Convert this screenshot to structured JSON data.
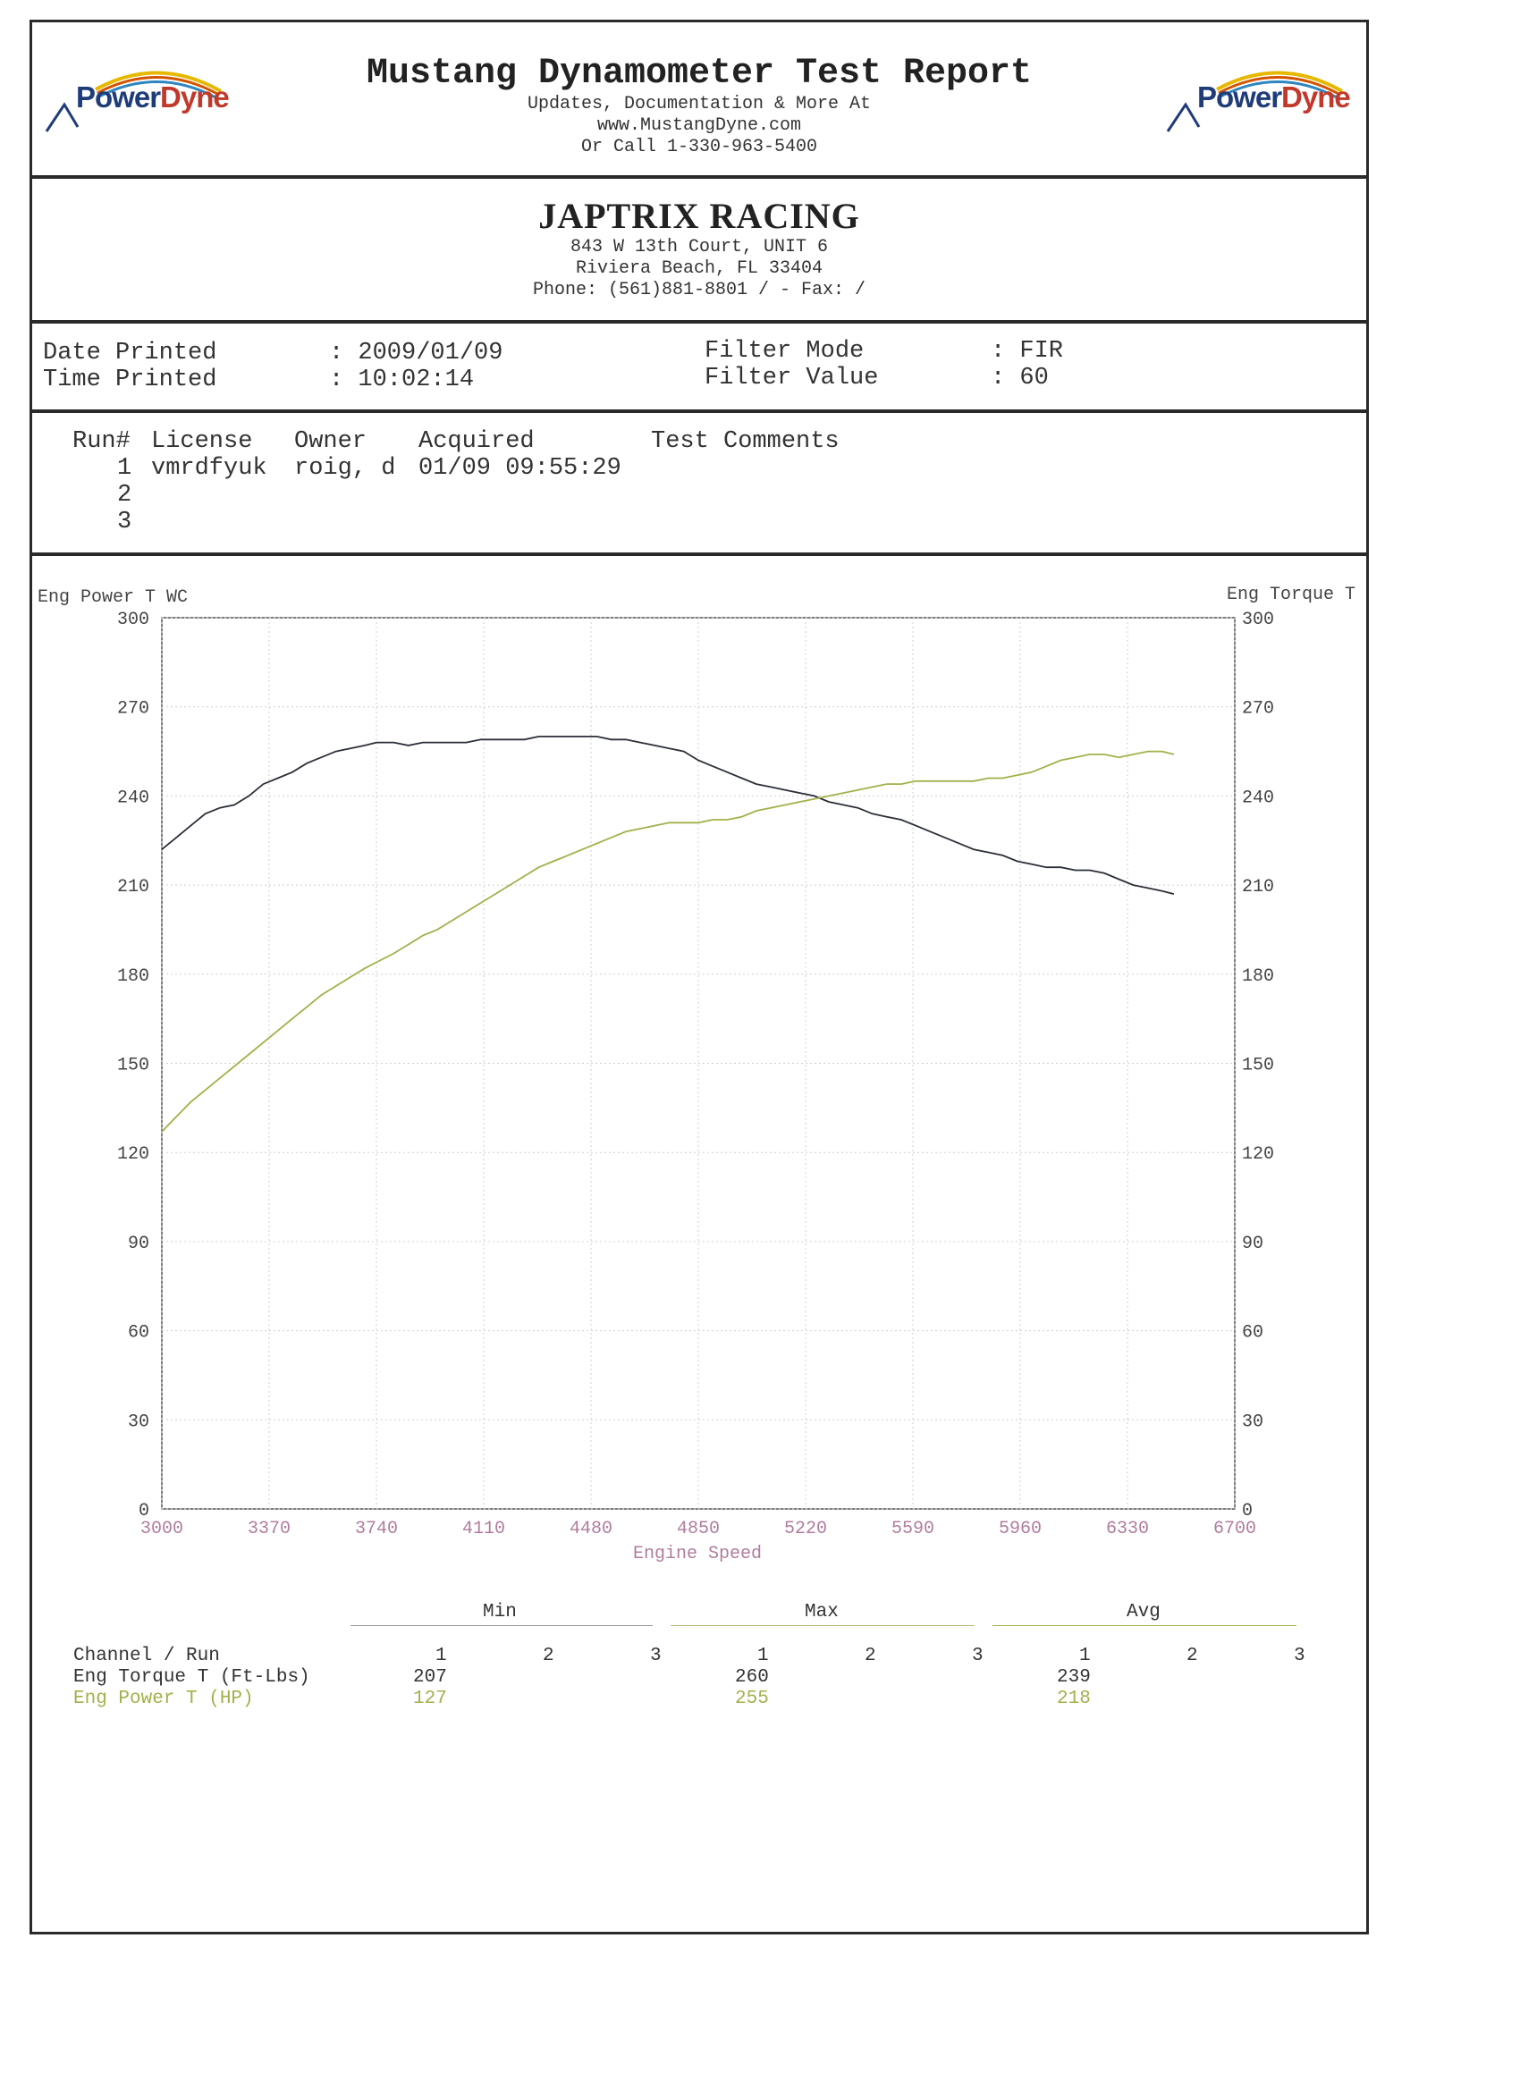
{
  "header": {
    "title": "Mustang Dynamometer Test Report",
    "line1": "Updates, Documentation & More At",
    "line2": "www.MustangDyne.com",
    "line3": "Or Call 1-330-963-5400",
    "logo_left": {
      "power": "Power",
      "dyne": "Dyne"
    },
    "logo_right": {
      "power": "Power",
      "dyne": "Dyne"
    }
  },
  "shop": {
    "name": "JAPTRIX RACING",
    "address1": "843 W 13th Court, UNIT 6",
    "address2": "Riviera Beach, FL  33404",
    "phone": "Phone: (561)881-8801 /  - Fax:  /"
  },
  "info": {
    "date_label": "Date Printed",
    "date_value": ": 2009/01/09",
    "time_label": "Time Printed",
    "time_value": ": 10:02:14",
    "filter_mode_label": "Filter Mode",
    "filter_mode_value": ": FIR",
    "filter_value_label": "Filter Value",
    "filter_value_value": ": 60"
  },
  "runs": {
    "headers": [
      "Run#",
      "License",
      "Owner",
      "Acquired",
      "Test Comments"
    ],
    "rows": [
      {
        "run": "1",
        "license": "vmrdfyuk",
        "owner": "roig, d",
        "acquired": "01/09 09:55:29",
        "comments": ""
      },
      {
        "run": "2",
        "license": "",
        "owner": "",
        "acquired": "",
        "comments": ""
      },
      {
        "run": "3",
        "license": "",
        "owner": "",
        "acquired": "",
        "comments": ""
      }
    ]
  },
  "chart_data": {
    "type": "line",
    "title": "",
    "xlabel": "Engine Speed",
    "ylabel_left": "Eng Power T WC",
    "ylabel_right": "Eng Torque T",
    "xlim": [
      3000,
      6700
    ],
    "ylim": [
      0,
      300
    ],
    "x_ticks": [
      "3000",
      "3370",
      "3740",
      "4110",
      "4480",
      "4850",
      "5220",
      "5590",
      "5960",
      "6330",
      "6700"
    ],
    "y_ticks": [
      "0",
      "30",
      "60",
      "90",
      "120",
      "150",
      "180",
      "210",
      "240",
      "270",
      "300"
    ],
    "grid": true,
    "series": [
      {
        "name": "Eng Torque T (Ft-Lbs)",
        "color": "#2b2f38",
        "x": [
          3000,
          3050,
          3100,
          3150,
          3200,
          3250,
          3300,
          3350,
          3400,
          3450,
          3500,
          3550,
          3600,
          3650,
          3700,
          3740,
          3800,
          3850,
          3900,
          3950,
          4000,
          4050,
          4100,
          4150,
          4200,
          4250,
          4300,
          4350,
          4400,
          4450,
          4500,
          4550,
          4600,
          4650,
          4700,
          4750,
          4800,
          4850,
          4900,
          4950,
          5000,
          5050,
          5100,
          5150,
          5200,
          5250,
          5300,
          5350,
          5400,
          5450,
          5500,
          5550,
          5600,
          5650,
          5700,
          5750,
          5800,
          5850,
          5900,
          5950,
          6000,
          6050,
          6100,
          6150,
          6200,
          6250,
          6300,
          6350,
          6400,
          6450,
          6490
        ],
        "y": [
          222,
          226,
          230,
          234,
          236,
          237,
          240,
          244,
          246,
          248,
          251,
          253,
          255,
          256,
          257,
          258,
          258,
          257,
          258,
          258,
          258,
          258,
          259,
          259,
          259,
          259,
          260,
          260,
          260,
          260,
          260,
          259,
          259,
          258,
          257,
          256,
          255,
          252,
          250,
          248,
          246,
          244,
          243,
          242,
          241,
          240,
          238,
          237,
          236,
          234,
          233,
          232,
          230,
          228,
          226,
          224,
          222,
          221,
          220,
          218,
          217,
          216,
          216,
          215,
          215,
          214,
          212,
          210,
          209,
          208,
          207
        ]
      },
      {
        "name": "Eng Power T (HP)",
        "color": "#a3b04a",
        "x": [
          3000,
          3050,
          3100,
          3150,
          3200,
          3250,
          3300,
          3350,
          3400,
          3450,
          3500,
          3550,
          3600,
          3650,
          3700,
          3740,
          3800,
          3850,
          3900,
          3950,
          4000,
          4050,
          4100,
          4150,
          4200,
          4250,
          4300,
          4350,
          4400,
          4450,
          4500,
          4550,
          4600,
          4650,
          4700,
          4750,
          4800,
          4850,
          4900,
          4950,
          5000,
          5050,
          5100,
          5150,
          5200,
          5250,
          5300,
          5350,
          5400,
          5450,
          5500,
          5550,
          5600,
          5650,
          5700,
          5750,
          5800,
          5850,
          5900,
          5950,
          6000,
          6050,
          6100,
          6150,
          6200,
          6250,
          6300,
          6350,
          6400,
          6450,
          6490
        ],
        "y": [
          127,
          132,
          137,
          141,
          145,
          149,
          153,
          157,
          161,
          165,
          169,
          173,
          176,
          179,
          182,
          184,
          187,
          190,
          193,
          195,
          198,
          201,
          204,
          207,
          210,
          213,
          216,
          218,
          220,
          222,
          224,
          226,
          228,
          229,
          230,
          231,
          231,
          231,
          232,
          232,
          233,
          235,
          236,
          237,
          238,
          239,
          240,
          241,
          242,
          243,
          244,
          244,
          245,
          245,
          245,
          245,
          245,
          246,
          246,
          247,
          248,
          250,
          252,
          253,
          254,
          254,
          253,
          254,
          255,
          255,
          254
        ]
      }
    ]
  },
  "stats": {
    "min_label": "Min",
    "max_label": "Max",
    "avg_label": "Avg",
    "channel_label": "Channel / Run",
    "run_cols": [
      "1",
      "2",
      "3"
    ],
    "rows": [
      {
        "channel": "Eng Torque T (Ft-Lbs)",
        "min": "207",
        "max": "260",
        "avg": "239"
      },
      {
        "channel": "Eng Power T (HP)",
        "min": "127",
        "max": "255",
        "avg": "218"
      }
    ]
  }
}
